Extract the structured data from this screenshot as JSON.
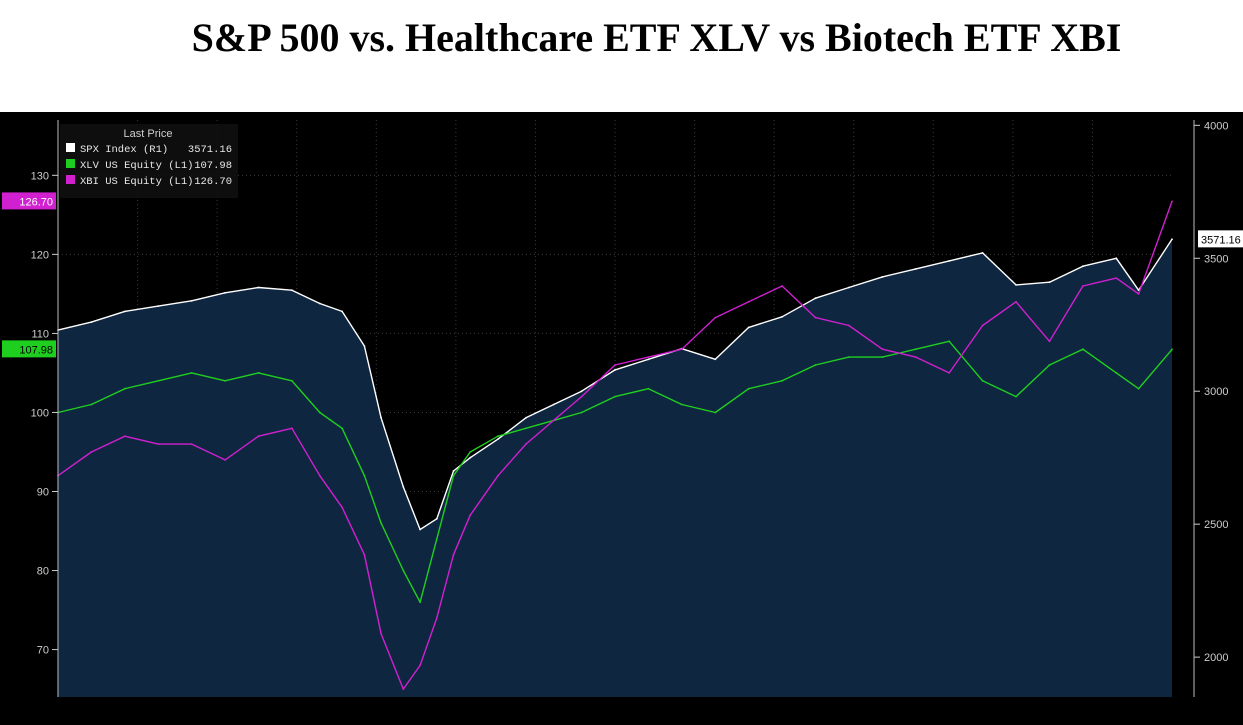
{
  "title": "S&P 500 vs. Healthcare ETF XLV vs Biotech ETF XBI",
  "colors": {
    "background": "#000000",
    "area_fill": "#0f2640",
    "grid": "#3a3a3a",
    "spx": "#ffffff",
    "xlv": "#1fcf1f",
    "xbi": "#d020d0"
  },
  "legend": {
    "header": "Last Price",
    "items": [
      {
        "label": "SPX Index  (R1)",
        "value": "3571.16",
        "color": "#ffffff"
      },
      {
        "label": "XLV US Equity  (L1)",
        "value": "107.98",
        "color": "#1fcf1f"
      },
      {
        "label": "XBI US Equity  (L1)",
        "value": "126.70",
        "color": "#d020d0"
      }
    ]
  },
  "badges": {
    "xbi_left": "126.70",
    "xlv_left": "107.98",
    "spx_right": "3571.16"
  },
  "chart_data": {
    "type": "line",
    "left_axis": {
      "ticks": [
        70,
        80,
        90,
        100,
        110,
        120,
        130
      ],
      "range": [
        64,
        137
      ]
    },
    "right_axis": {
      "ticks": [
        2000,
        2500,
        3000,
        3500,
        4000
      ],
      "range": [
        1850,
        4020
      ]
    },
    "x": [
      0,
      0.03,
      0.06,
      0.09,
      0.12,
      0.15,
      0.18,
      0.21,
      0.235,
      0.255,
      0.275,
      0.29,
      0.31,
      0.325,
      0.34,
      0.355,
      0.37,
      0.395,
      0.42,
      0.445,
      0.47,
      0.5,
      0.53,
      0.56,
      0.59,
      0.62,
      0.65,
      0.68,
      0.71,
      0.74,
      0.77,
      0.8,
      0.83,
      0.86,
      0.89,
      0.92,
      0.95,
      0.97,
      1.0
    ],
    "series": [
      {
        "name": "SPX Index  (R1)",
        "axis": "right",
        "values": [
          3230,
          3260,
          3300,
          3320,
          3340,
          3370,
          3390,
          3380,
          3330,
          3300,
          3170,
          2900,
          2640,
          2480,
          2520,
          2700,
          2750,
          2820,
          2900,
          2950,
          3000,
          3080,
          3120,
          3160,
          3120,
          3240,
          3280,
          3350,
          3390,
          3430,
          3460,
          3490,
          3520,
          3400,
          3410,
          3470,
          3500,
          3380,
          3571.16
        ]
      },
      {
        "name": "XLV US Equity  (L1)",
        "axis": "left",
        "values": [
          100,
          101,
          103,
          104,
          105,
          104,
          105,
          104,
          100,
          98,
          92,
          86,
          80,
          76,
          84,
          92,
          95,
          97,
          98,
          99,
          100,
          102,
          103,
          101,
          100,
          103,
          104,
          106,
          107,
          107,
          108,
          109,
          104,
          102,
          106,
          108,
          105,
          103,
          107.98
        ]
      },
      {
        "name": "XBI US Equity  (L1)",
        "axis": "left",
        "values": [
          92,
          95,
          97,
          96,
          96,
          94,
          97,
          98,
          92,
          88,
          82,
          72,
          65,
          68,
          74,
          82,
          87,
          92,
          96,
          99,
          102,
          106,
          107,
          108,
          112,
          114,
          116,
          112,
          111,
          108,
          107,
          105,
          111,
          114,
          109,
          116,
          117,
          115,
          126.7
        ]
      }
    ]
  }
}
